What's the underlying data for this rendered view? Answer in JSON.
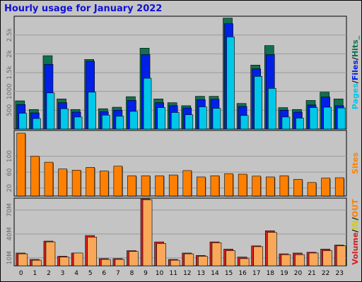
{
  "title": "Hourly usage for January 2022",
  "colors": {
    "background": "#c4c4c4",
    "grid": "#9a9a9a",
    "pages": "#00c8e8",
    "files": "#0020e8",
    "hits": "#107050",
    "sites": "#ff8000",
    "volume_in": "#f8a858",
    "volume_out": "#d02020",
    "title": "#1010d8"
  },
  "chart_data": [
    {
      "type": "bar",
      "name": "hits-files-pages",
      "categories": [
        "0",
        "1",
        "2",
        "3",
        "4",
        "5",
        "6",
        "7",
        "8",
        "9",
        "10",
        "11",
        "12",
        "13",
        "14",
        "15",
        "16",
        "17",
        "18",
        "19",
        "20",
        "21",
        "22",
        "23"
      ],
      "series": [
        {
          "name": "Hits",
          "values": [
            750,
            520,
            1950,
            800,
            520,
            1850,
            540,
            580,
            860,
            2150,
            800,
            700,
            620,
            870,
            870,
            2950,
            680,
            1700,
            2220,
            570,
            520,
            760,
            980,
            800
          ]
        },
        {
          "name": "Files",
          "values": [
            650,
            430,
            1720,
            700,
            450,
            1800,
            460,
            500,
            760,
            1980,
            700,
            620,
            560,
            780,
            790,
            2800,
            600,
            1600,
            1980,
            500,
            450,
            640,
            850,
            620
          ]
        },
        {
          "name": "Pages",
          "values": [
            420,
            280,
            960,
            540,
            320,
            980,
            370,
            340,
            470,
            1350,
            570,
            440,
            380,
            590,
            550,
            2450,
            360,
            1400,
            1080,
            320,
            290,
            570,
            580,
            560
          ]
        }
      ],
      "ylim": [
        0,
        3000
      ],
      "yticks": [
        500,
        1000,
        "1.5k",
        "2k",
        "2.5k"
      ],
      "side_labels": [
        "Pages",
        "/",
        "Files",
        "/",
        "Hits",
        "_"
      ]
    },
    {
      "type": "bar",
      "name": "sites",
      "categories": [
        "0",
        "1",
        "2",
        "3",
        "4",
        "5",
        "6",
        "7",
        "8",
        "9",
        "10",
        "11",
        "12",
        "13",
        "14",
        "15",
        "16",
        "17",
        "18",
        "19",
        "20",
        "21",
        "22",
        "23"
      ],
      "series": [
        {
          "name": "Sites",
          "values": [
            158,
            100,
            85,
            68,
            65,
            72,
            63,
            75,
            51,
            51,
            51,
            53,
            64,
            48,
            51,
            56,
            55,
            50,
            48,
            51,
            42,
            34,
            45,
            46
          ]
        }
      ],
      "ylim": [
        0,
        165
      ],
      "yticks": [
        20,
        60,
        100
      ],
      "side_labels": [
        "Sites"
      ]
    },
    {
      "type": "bar",
      "name": "volume",
      "categories": [
        "0",
        "1",
        "2",
        "3",
        "4",
        "5",
        "6",
        "7",
        "8",
        "9",
        "10",
        "11",
        "12",
        "13",
        "14",
        "15",
        "16",
        "17",
        "18",
        "19",
        "20",
        "21",
        "22",
        "23"
      ],
      "series": [
        {
          "name": "OUT",
          "values": [
            16,
            8,
            31,
            12,
            16,
            38,
            9,
            9,
            19,
            84,
            30,
            8,
            16,
            13,
            30,
            21,
            11,
            25,
            44,
            15,
            16,
            17,
            21,
            26
          ]
        },
        {
          "name": "IN",
          "values": [
            15,
            7,
            30,
            11,
            16,
            36,
            8,
            8,
            18,
            83,
            28,
            7,
            15,
            12,
            29,
            19,
            9,
            24,
            42,
            14,
            14,
            16,
            19,
            25
          ]
        }
      ],
      "ylim": [
        0,
        85
      ],
      "yticks": [
        "10M",
        "40M",
        "70M"
      ],
      "side_labels": [
        "Volume",
        "/",
        "IN",
        "/",
        "OUT"
      ]
    }
  ]
}
